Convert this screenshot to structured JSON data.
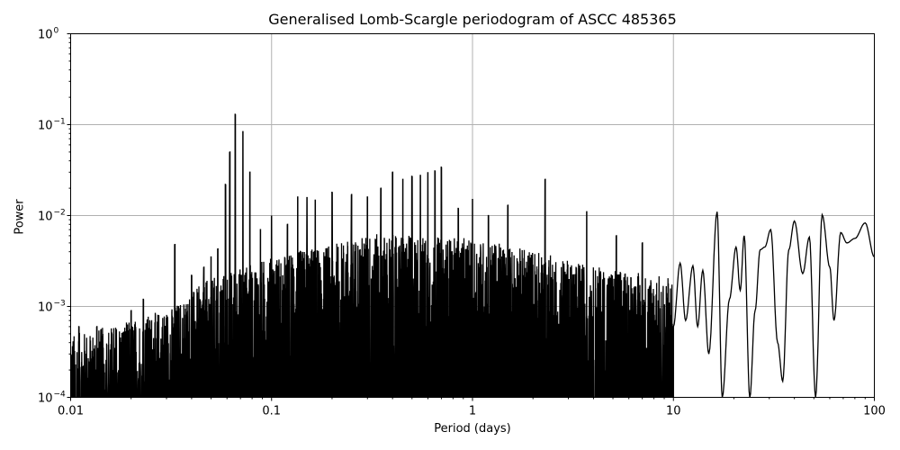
{
  "chart_data": {
    "type": "line",
    "title": "Generalised Lomb-Scargle periodogram of ASCC 485365",
    "xlabel": "Period (days)",
    "ylabel": "Power",
    "xscale": "log",
    "yscale": "log",
    "xlim": [
      0.01,
      100
    ],
    "ylim": [
      0.0001,
      1
    ],
    "x_ticks": [
      "0.01",
      "0.1",
      "1",
      "10",
      "100"
    ],
    "y_ticks": [
      {
        "base": "10",
        "exp": "0"
      },
      {
        "base": "10",
        "exp": "−1"
      },
      {
        "base": "10",
        "exp": "−2"
      },
      {
        "base": "10",
        "exp": "−3"
      },
      {
        "base": "10",
        "exp": "−4"
      }
    ],
    "grid": true,
    "legend": null,
    "line_color": "#000000",
    "grid_color": "#b0b0b0",
    "series": [
      {
        "name": "GLS power",
        "description": "Dense noisy periodogram; noise floor rises from ~3e-4 at 0.01 d to ~3e-3 at 0.3-1 d; strongest peak ~0.13 at P~0.066 d; smooth oscillations beyond 10 d",
        "peaks": [
          {
            "period": 0.011,
            "power": 0.0006
          },
          {
            "period": 0.0135,
            "power": 0.0006
          },
          {
            "period": 0.02,
            "power": 0.0009
          },
          {
            "period": 0.023,
            "power": 0.0012
          },
          {
            "period": 0.033,
            "power": 0.0048
          },
          {
            "period": 0.04,
            "power": 0.0022
          },
          {
            "period": 0.046,
            "power": 0.0027
          },
          {
            "period": 0.05,
            "power": 0.0035
          },
          {
            "period": 0.054,
            "power": 0.0043
          },
          {
            "period": 0.059,
            "power": 0.022
          },
          {
            "period": 0.062,
            "power": 0.05
          },
          {
            "period": 0.066,
            "power": 0.13
          },
          {
            "period": 0.072,
            "power": 0.085
          },
          {
            "period": 0.078,
            "power": 0.03
          },
          {
            "period": 0.088,
            "power": 0.007
          },
          {
            "period": 0.1,
            "power": 0.01
          },
          {
            "period": 0.12,
            "power": 0.008
          },
          {
            "period": 0.135,
            "power": 0.016
          },
          {
            "period": 0.15,
            "power": 0.016
          },
          {
            "period": 0.165,
            "power": 0.015
          },
          {
            "period": 0.2,
            "power": 0.018
          },
          {
            "period": 0.25,
            "power": 0.017
          },
          {
            "period": 0.3,
            "power": 0.016
          },
          {
            "period": 0.35,
            "power": 0.02
          },
          {
            "period": 0.4,
            "power": 0.03
          },
          {
            "period": 0.45,
            "power": 0.025
          },
          {
            "period": 0.5,
            "power": 0.027
          },
          {
            "period": 0.55,
            "power": 0.028
          },
          {
            "period": 0.6,
            "power": 0.03
          },
          {
            "period": 0.65,
            "power": 0.031
          },
          {
            "period": 0.7,
            "power": 0.034
          },
          {
            "period": 0.85,
            "power": 0.012
          },
          {
            "period": 1.0,
            "power": 0.015
          },
          {
            "period": 1.2,
            "power": 0.01
          },
          {
            "period": 1.5,
            "power": 0.013
          },
          {
            "period": 2.3,
            "power": 0.025
          },
          {
            "period": 3.7,
            "power": 0.011
          },
          {
            "period": 5.2,
            "power": 0.006
          },
          {
            "period": 7.0,
            "power": 0.005
          },
          {
            "period": 16.5,
            "power": 0.011
          },
          {
            "period": 22.0,
            "power": 0.0062
          },
          {
            "period": 30.0,
            "power": 0.0069
          },
          {
            "period": 40.0,
            "power": 0.0086
          },
          {
            "period": 55.0,
            "power": 0.0102
          },
          {
            "period": 65.0,
            "power": 0.0064
          },
          {
            "period": 90.0,
            "power": 0.0082
          },
          {
            "period": 100.0,
            "power": 0.0035
          }
        ],
        "long_period_curve": [
          [
            10.0,
            0.0006
          ],
          [
            10.8,
            0.003
          ],
          [
            11.5,
            0.0007
          ],
          [
            12.5,
            0.0028
          ],
          [
            13.2,
            0.0006
          ],
          [
            14.0,
            0.0025
          ],
          [
            15.0,
            0.0003
          ],
          [
            16.5,
            0.011
          ],
          [
            17.5,
            0.0001
          ],
          [
            19.0,
            0.0012
          ],
          [
            20.5,
            0.0045
          ],
          [
            21.5,
            0.0015
          ],
          [
            22.5,
            0.006
          ],
          [
            24.0,
            0.0001
          ],
          [
            25.5,
            0.0009
          ],
          [
            27.0,
            0.0042
          ],
          [
            28.5,
            0.0045
          ],
          [
            30.5,
            0.007
          ],
          [
            33.0,
            0.0004
          ],
          [
            35.0,
            0.00015
          ],
          [
            37.5,
            0.0042
          ],
          [
            40.0,
            0.0087
          ],
          [
            44.0,
            0.0023
          ],
          [
            47.5,
            0.0058
          ],
          [
            51.0,
            0.0001
          ],
          [
            55.0,
            0.0102
          ],
          [
            60.0,
            0.0027
          ],
          [
            63.0,
            0.0007
          ],
          [
            68.0,
            0.0065
          ],
          [
            73.0,
            0.005
          ],
          [
            80.0,
            0.0056
          ],
          [
            90.0,
            0.0083
          ],
          [
            100.0,
            0.0035
          ]
        ]
      }
    ]
  }
}
